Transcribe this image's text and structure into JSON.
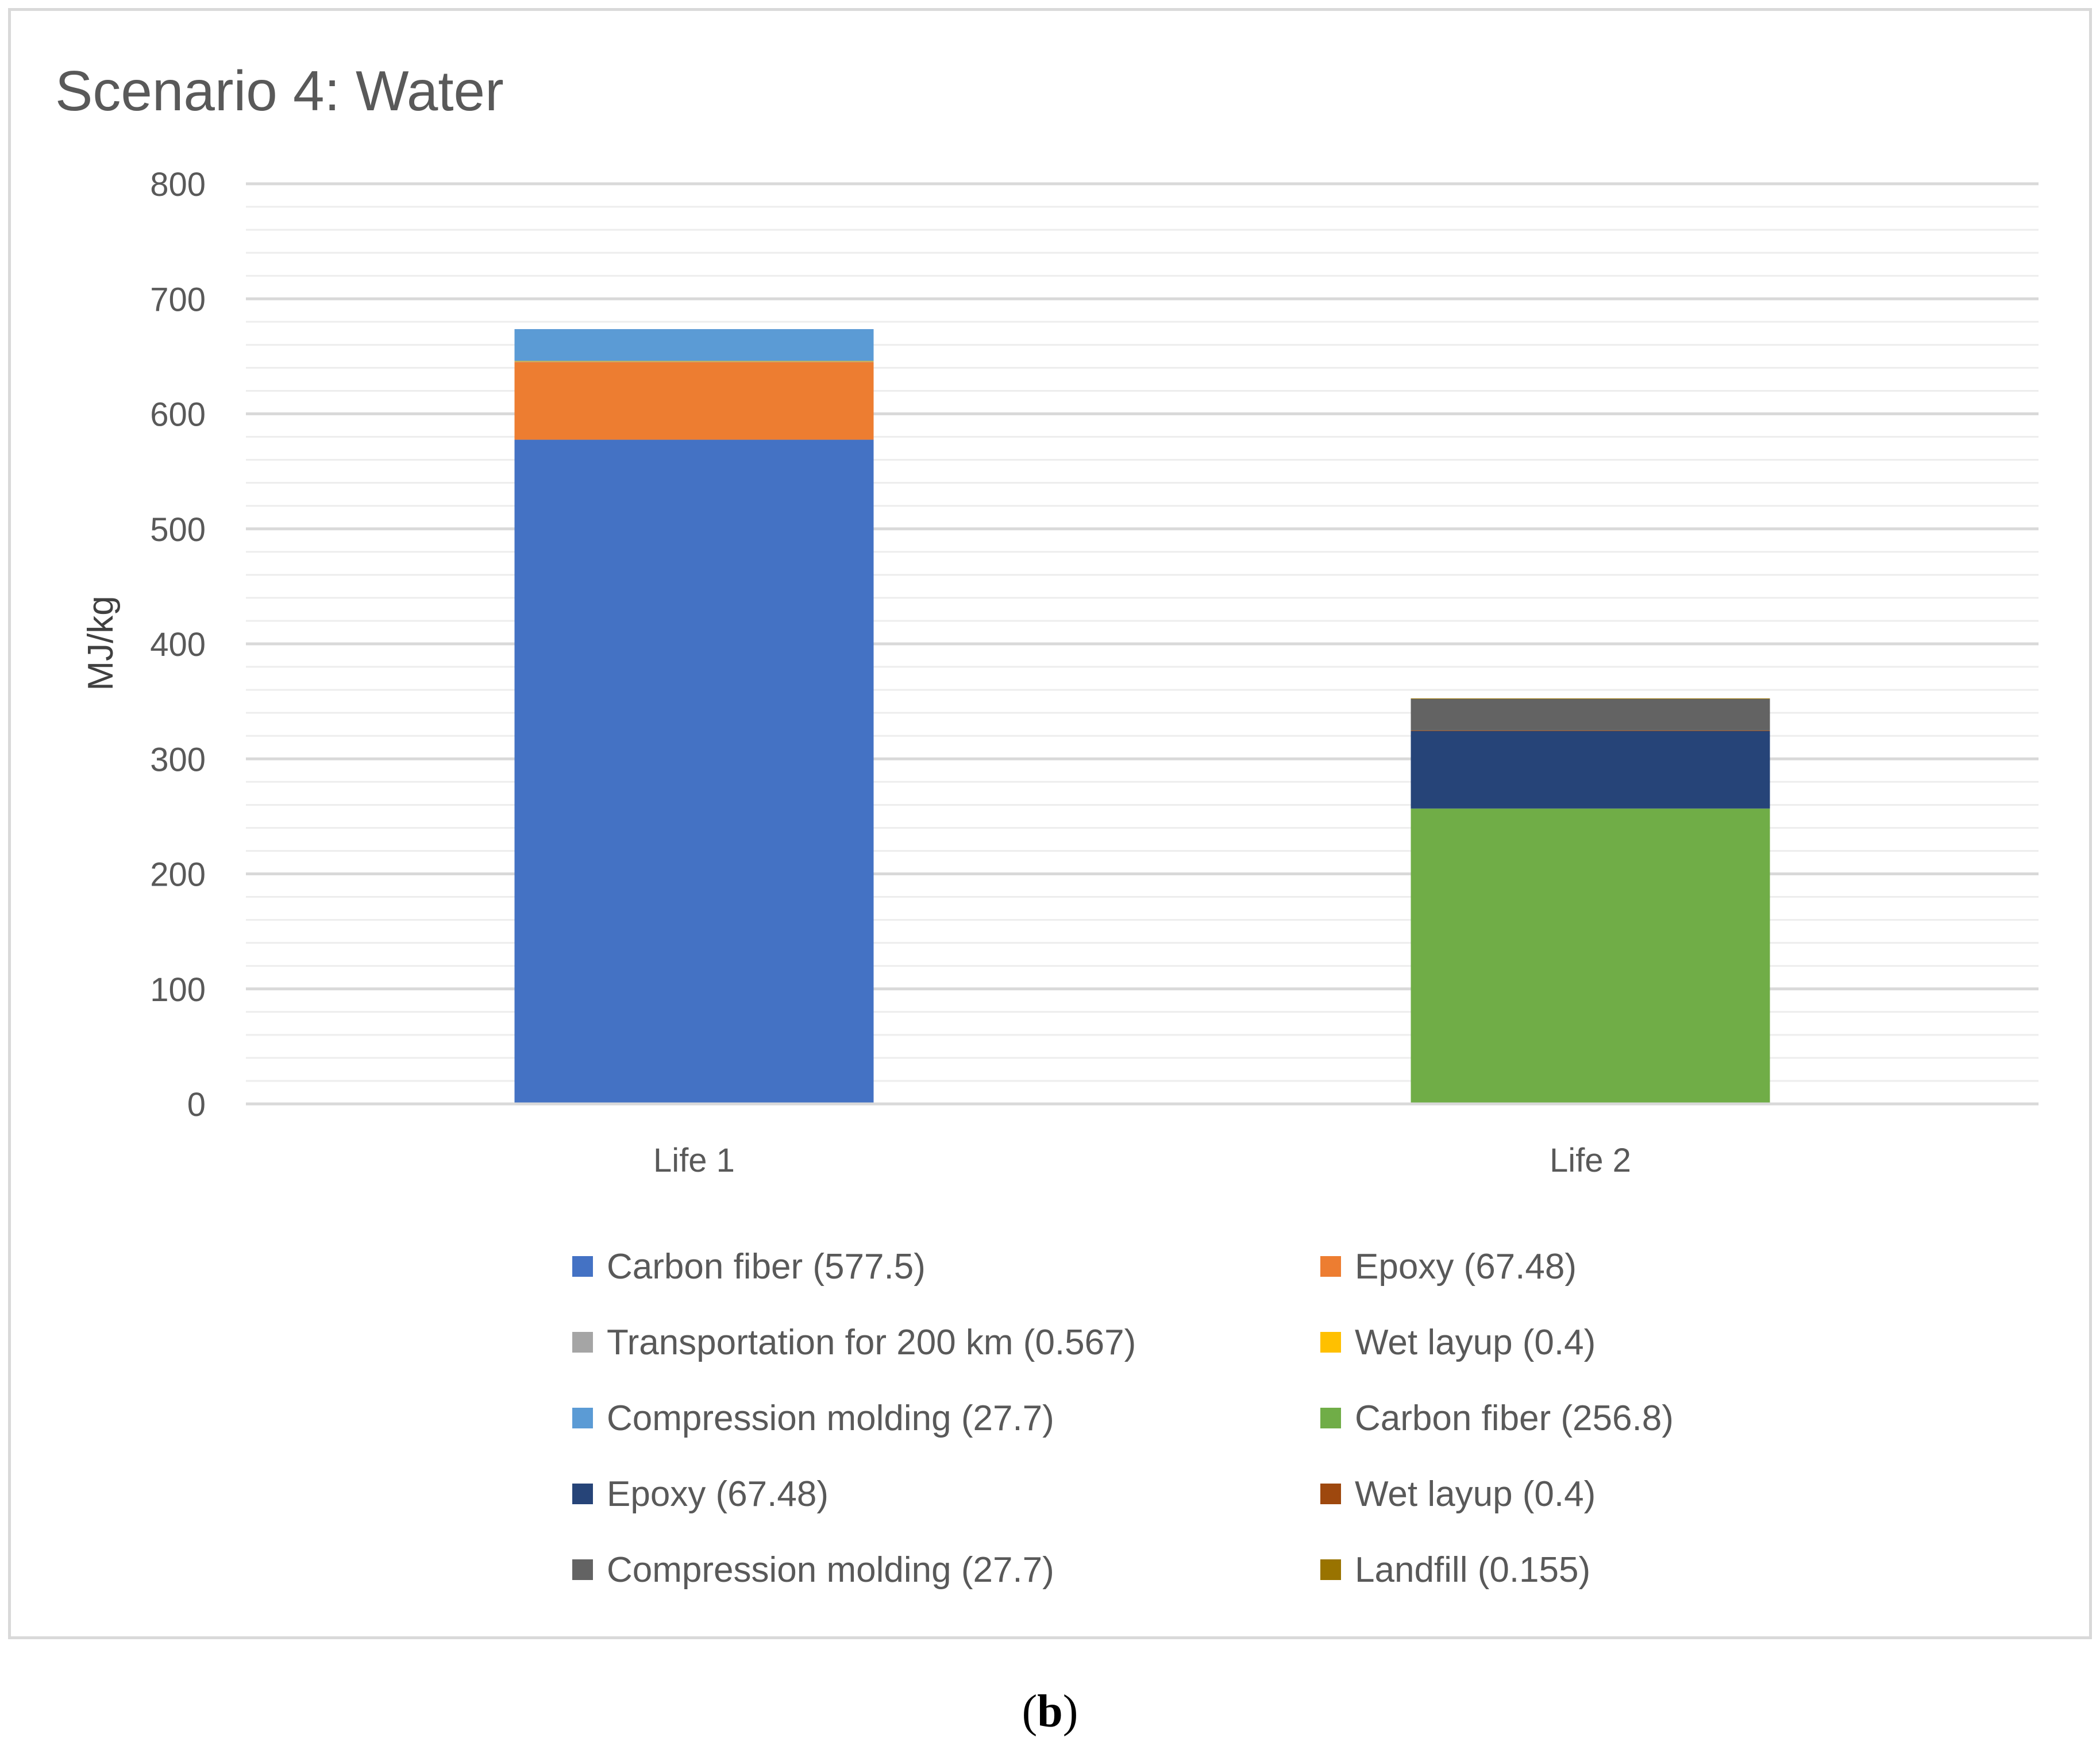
{
  "chart_data": {
    "type": "bar",
    "stacked": true,
    "title": "Scenario 4: Water",
    "xlabel": "",
    "ylabel": "MJ/kg",
    "ylim": [
      0,
      800
    ],
    "yticks": [
      "0",
      "100",
      "200",
      "300",
      "400",
      "500",
      "600",
      "700",
      "800"
    ],
    "grid": true,
    "legend_position": "bottom",
    "categories": [
      "Life 1",
      "Life 2"
    ],
    "series": [
      {
        "name": "Carbon fiber (577.5)",
        "color": "#4472c4",
        "values": [
          577.5,
          0
        ]
      },
      {
        "name": "Epoxy (67.48)",
        "color": "#ed7d31",
        "values": [
          67.48,
          0
        ]
      },
      {
        "name": "Transportation for 200 km (0.567)",
        "color": "#a5a5a5",
        "values": [
          0.567,
          0
        ]
      },
      {
        "name": "Wet layup (0.4)",
        "color": "#ffc000",
        "values": [
          0.4,
          0
        ]
      },
      {
        "name": "Compression molding (27.7)",
        "color": "#5b9bd5",
        "values": [
          27.7,
          0
        ]
      },
      {
        "name": "Carbon fiber (256.8)",
        "color": "#70ad47",
        "values": [
          0,
          256.8
        ]
      },
      {
        "name": "Epoxy (67.48)",
        "color": "#264478",
        "values": [
          0,
          67.48
        ]
      },
      {
        "name": "Wet layup (0.4)",
        "color": "#9e480e",
        "values": [
          0,
          0.4
        ]
      },
      {
        "name": "Compression molding (27.7)",
        "color": "#636363",
        "values": [
          0,
          27.7
        ]
      },
      {
        "name": "Landfill (0.155)",
        "color": "#997300",
        "values": [
          0,
          0.155
        ]
      }
    ]
  },
  "panel_label": {
    "open": "(",
    "letter": "b",
    "close": ")"
  }
}
